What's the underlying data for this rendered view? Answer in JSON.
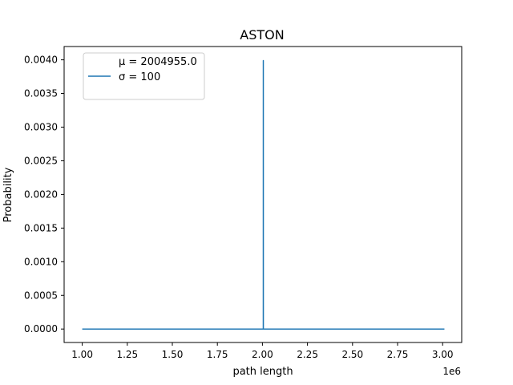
{
  "chart_data": {
    "type": "line",
    "title": "ASTON",
    "xlabel": "path length",
    "ylabel": "Probability",
    "x_offset_label": "1e6",
    "xlim": [
      1.0,
      3.0
    ],
    "ylim": [
      0.0,
      0.004
    ],
    "x_ticks": [
      "1.00",
      "1.25",
      "1.50",
      "1.75",
      "2.00",
      "2.25",
      "2.50",
      "2.75",
      "3.00"
    ],
    "y_ticks": [
      "0.0000",
      "0.0005",
      "0.0010",
      "0.0015",
      "0.0020",
      "0.0025",
      "0.0030",
      "0.0035",
      "0.0040"
    ],
    "legend": {
      "placement": "upper-left",
      "entries": [
        "μ = 2004955.0",
        "σ = 100"
      ]
    },
    "series": [
      {
        "color": "#1f77b4",
        "x": [
          1.0,
          2.004755,
          2.004955,
          2.005155,
          3.01
        ],
        "y": [
          0.0,
          0.0,
          0.00399,
          0.0,
          0.0
        ]
      }
    ],
    "grid": false
  }
}
